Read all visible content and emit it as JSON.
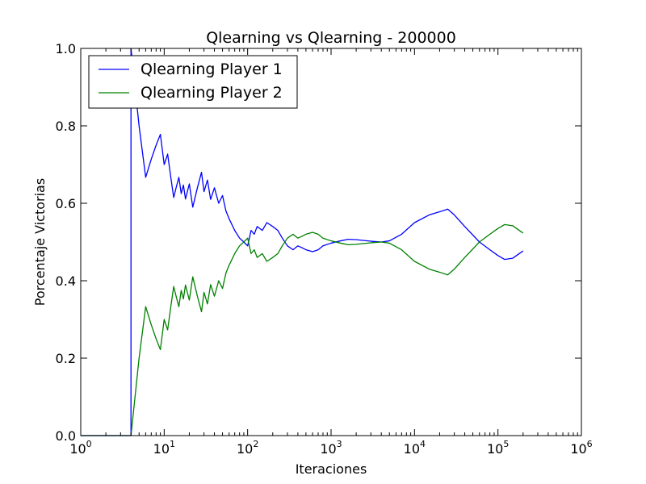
{
  "chart_data": {
    "type": "line",
    "title": "Qlearning vs Qlearning - 200000",
    "xlabel": "Iteraciones",
    "ylabel": "Porcentaje Victorias",
    "xscale": "log",
    "xlim": [
      1,
      1000000
    ],
    "ylim": [
      0.0,
      1.0
    ],
    "x_ticks": [
      {
        "base": "10",
        "exp": "0"
      },
      {
        "base": "10",
        "exp": "1"
      },
      {
        "base": "10",
        "exp": "2"
      },
      {
        "base": "10",
        "exp": "3"
      },
      {
        "base": "10",
        "exp": "4"
      },
      {
        "base": "10",
        "exp": "5"
      },
      {
        "base": "10",
        "exp": "6"
      }
    ],
    "y_ticks": [
      "0.0",
      "0.2",
      "0.4",
      "0.6",
      "0.8",
      "1.0"
    ],
    "legend_position": "upper-left",
    "grid": false,
    "series": [
      {
        "name": "Qlearning Player 1",
        "color": "#0000ff",
        "points": [
          [
            1,
            0.0
          ],
          [
            4,
            0.0
          ],
          [
            4,
            1.0
          ],
          [
            5,
            0.8
          ],
          [
            6,
            0.667
          ],
          [
            7,
            0.714
          ],
          [
            8,
            0.75
          ],
          [
            9,
            0.778
          ],
          [
            10,
            0.7
          ],
          [
            11,
            0.727
          ],
          [
            12,
            0.667
          ],
          [
            13,
            0.615
          ],
          [
            14,
            0.643
          ],
          [
            15,
            0.667
          ],
          [
            16,
            0.625
          ],
          [
            17,
            0.647
          ],
          [
            18,
            0.611
          ],
          [
            20,
            0.65
          ],
          [
            22,
            0.59
          ],
          [
            25,
            0.64
          ],
          [
            28,
            0.68
          ],
          [
            30,
            0.63
          ],
          [
            33,
            0.66
          ],
          [
            36,
            0.61
          ],
          [
            40,
            0.64
          ],
          [
            45,
            0.6
          ],
          [
            50,
            0.62
          ],
          [
            55,
            0.58
          ],
          [
            60,
            0.56
          ],
          [
            70,
            0.53
          ],
          [
            80,
            0.51
          ],
          [
            90,
            0.5
          ],
          [
            100,
            0.49
          ],
          [
            110,
            0.53
          ],
          [
            120,
            0.52
          ],
          [
            130,
            0.54
          ],
          [
            150,
            0.53
          ],
          [
            170,
            0.55
          ],
          [
            200,
            0.54
          ],
          [
            230,
            0.53
          ],
          [
            260,
            0.51
          ],
          [
            300,
            0.49
          ],
          [
            350,
            0.48
          ],
          [
            400,
            0.49
          ],
          [
            450,
            0.485
          ],
          [
            500,
            0.48
          ],
          [
            600,
            0.475
          ],
          [
            700,
            0.48
          ],
          [
            800,
            0.49
          ],
          [
            1000,
            0.497
          ],
          [
            1300,
            0.503
          ],
          [
            1600,
            0.507
          ],
          [
            2000,
            0.506
          ],
          [
            3000,
            0.502
          ],
          [
            4000,
            0.5
          ],
          [
            5000,
            0.503
          ],
          [
            7000,
            0.52
          ],
          [
            10000,
            0.55
          ],
          [
            15000,
            0.57
          ],
          [
            20000,
            0.578
          ],
          [
            25000,
            0.585
          ],
          [
            30000,
            0.57
          ],
          [
            40000,
            0.54
          ],
          [
            60000,
            0.5
          ],
          [
            80000,
            0.48
          ],
          [
            100000,
            0.465
          ],
          [
            120000,
            0.455
          ],
          [
            150000,
            0.458
          ],
          [
            200000,
            0.477
          ]
        ]
      },
      {
        "name": "Qlearning Player 2",
        "color": "#008000",
        "points": [
          [
            1,
            0.0
          ],
          [
            4,
            0.0
          ],
          [
            4,
            0.0
          ],
          [
            5,
            0.2
          ],
          [
            6,
            0.333
          ],
          [
            7,
            0.286
          ],
          [
            8,
            0.25
          ],
          [
            9,
            0.222
          ],
          [
            10,
            0.3
          ],
          [
            11,
            0.273
          ],
          [
            12,
            0.333
          ],
          [
            13,
            0.385
          ],
          [
            14,
            0.357
          ],
          [
            15,
            0.333
          ],
          [
            16,
            0.375
          ],
          [
            17,
            0.353
          ],
          [
            18,
            0.389
          ],
          [
            20,
            0.35
          ],
          [
            22,
            0.41
          ],
          [
            25,
            0.36
          ],
          [
            28,
            0.32
          ],
          [
            30,
            0.37
          ],
          [
            33,
            0.34
          ],
          [
            36,
            0.39
          ],
          [
            40,
            0.36
          ],
          [
            45,
            0.4
          ],
          [
            50,
            0.38
          ],
          [
            55,
            0.42
          ],
          [
            60,
            0.44
          ],
          [
            70,
            0.47
          ],
          [
            80,
            0.49
          ],
          [
            90,
            0.5
          ],
          [
            100,
            0.51
          ],
          [
            110,
            0.47
          ],
          [
            120,
            0.48
          ],
          [
            130,
            0.46
          ],
          [
            150,
            0.47
          ],
          [
            170,
            0.45
          ],
          [
            200,
            0.46
          ],
          [
            230,
            0.47
          ],
          [
            260,
            0.49
          ],
          [
            300,
            0.51
          ],
          [
            350,
            0.52
          ],
          [
            400,
            0.51
          ],
          [
            450,
            0.515
          ],
          [
            500,
            0.52
          ],
          [
            600,
            0.525
          ],
          [
            700,
            0.52
          ],
          [
            800,
            0.51
          ],
          [
            1000,
            0.503
          ],
          [
            1300,
            0.497
          ],
          [
            1600,
            0.493
          ],
          [
            2000,
            0.494
          ],
          [
            3000,
            0.498
          ],
          [
            4000,
            0.5
          ],
          [
            5000,
            0.497
          ],
          [
            7000,
            0.48
          ],
          [
            10000,
            0.45
          ],
          [
            15000,
            0.43
          ],
          [
            20000,
            0.422
          ],
          [
            25000,
            0.415
          ],
          [
            30000,
            0.43
          ],
          [
            40000,
            0.46
          ],
          [
            60000,
            0.5
          ],
          [
            80000,
            0.52
          ],
          [
            100000,
            0.535
          ],
          [
            120000,
            0.545
          ],
          [
            150000,
            0.542
          ],
          [
            200000,
            0.523
          ]
        ]
      }
    ]
  }
}
